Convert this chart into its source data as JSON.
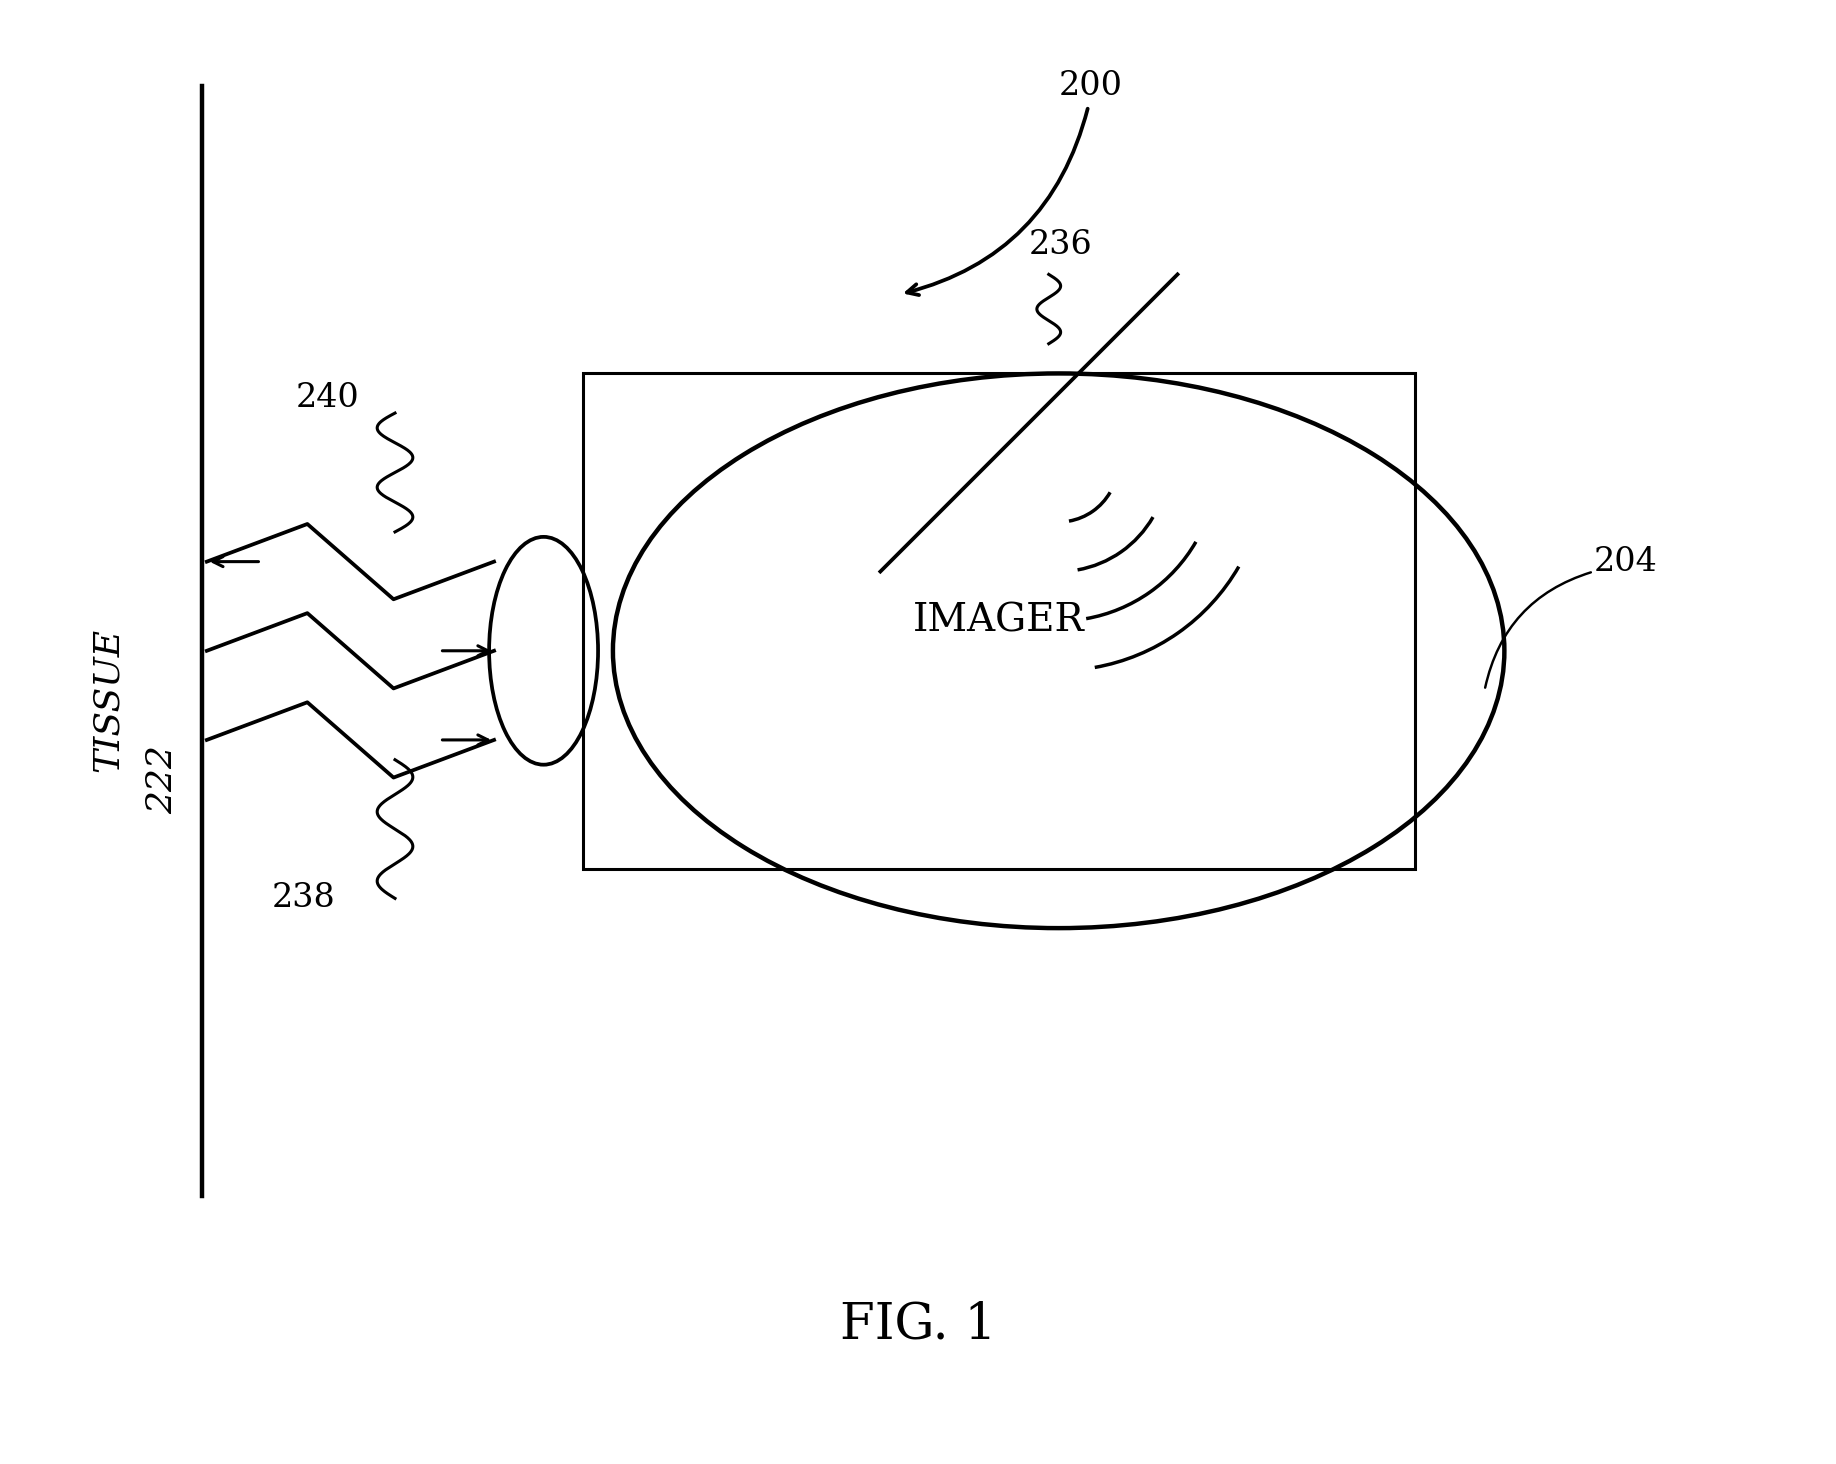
{
  "background_color": "#ffffff",
  "line_color": "#000000",
  "line_width": 2.2,
  "fig_width": 18.36,
  "fig_height": 14.64,
  "dpi": 100,
  "title": "FIG. 1",
  "title_fontsize": 36,
  "label_fontsize": 22,
  "tissue_label": "TISSUE",
  "tissue_number": "222",
  "label_200": "200",
  "label_204": "204",
  "label_236": "236",
  "label_238": "238",
  "label_240": "240",
  "imager_label": "IMAGER",
  "imager_fontsize": 28
}
